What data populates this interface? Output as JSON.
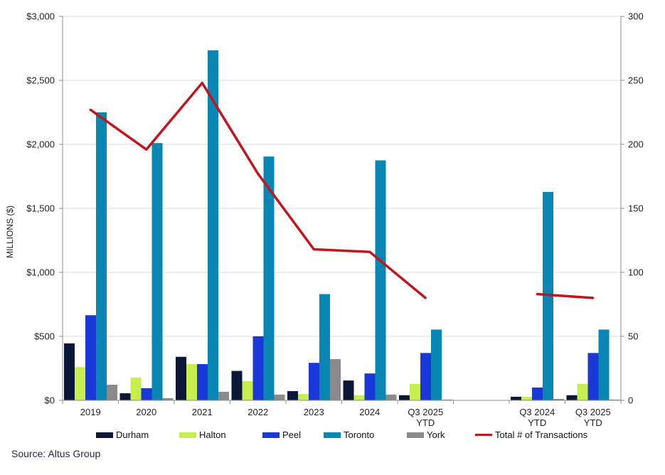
{
  "chart_data": {
    "type": "bar",
    "ylabel": "MILLIONS ($)",
    "categories": [
      "2019",
      "2020",
      "2021",
      "2022",
      "2023",
      "2024",
      "Q3 2025 YTD",
      "",
      "Q3 2024 YTD",
      "Q3 2025 YTD"
    ],
    "series": [
      {
        "name": "Durham",
        "type": "bar",
        "y_axis": 1,
        "color": "#0b1838",
        "values": [
          445,
          55,
          340,
          230,
          72,
          155,
          40,
          null,
          28,
          40
        ]
      },
      {
        "name": "Halton",
        "type": "bar",
        "y_axis": 1,
        "color": "#c6ee4e",
        "values": [
          260,
          178,
          283,
          150,
          50,
          40,
          128,
          null,
          28,
          128
        ]
      },
      {
        "name": "Peel",
        "type": "bar",
        "y_axis": 1,
        "color": "#1a38d8",
        "values": [
          665,
          95,
          283,
          500,
          293,
          210,
          370,
          null,
          100,
          370
        ]
      },
      {
        "name": "Toronto",
        "type": "bar",
        "y_axis": 1,
        "color": "#0a86b3",
        "values": [
          2250,
          2010,
          2735,
          1905,
          830,
          1875,
          553,
          null,
          1628,
          553
        ]
      },
      {
        "name": "York",
        "type": "bar",
        "y_axis": 1,
        "color": "#8a8a8a",
        "values": [
          122,
          17,
          67,
          45,
          322,
          45,
          6,
          null,
          11,
          6
        ]
      },
      {
        "name": "Total # of Transactions",
        "type": "line",
        "y_axis": 2,
        "color": "#c0161d",
        "values": [
          227,
          196,
          248,
          177,
          118,
          116,
          80,
          null,
          83,
          80
        ]
      }
    ],
    "ylim": [
      0,
      3000
    ],
    "y2lim": [
      0,
      300
    ],
    "y_ticks": [
      {
        "value": 0,
        "label": "$0"
      },
      {
        "value": 500,
        "label": "$500"
      },
      {
        "value": 1000,
        "label": "$1,000"
      },
      {
        "value": 1500,
        "label": "$1,500"
      },
      {
        "value": 2000,
        "label": "$2,000"
      },
      {
        "value": 2500,
        "label": "$2,500"
      },
      {
        "value": 3000,
        "label": "$3,000"
      }
    ],
    "y2_ticks": [
      {
        "value": 0,
        "label": "0"
      },
      {
        "value": 50,
        "label": "50"
      },
      {
        "value": 100,
        "label": "100"
      },
      {
        "value": 150,
        "label": "150"
      },
      {
        "value": 200,
        "label": "200"
      },
      {
        "value": 250,
        "label": "250"
      },
      {
        "value": 300,
        "label": "300"
      }
    ],
    "grid": true,
    "legend": "bottom"
  },
  "source": "Source: Altus Group"
}
